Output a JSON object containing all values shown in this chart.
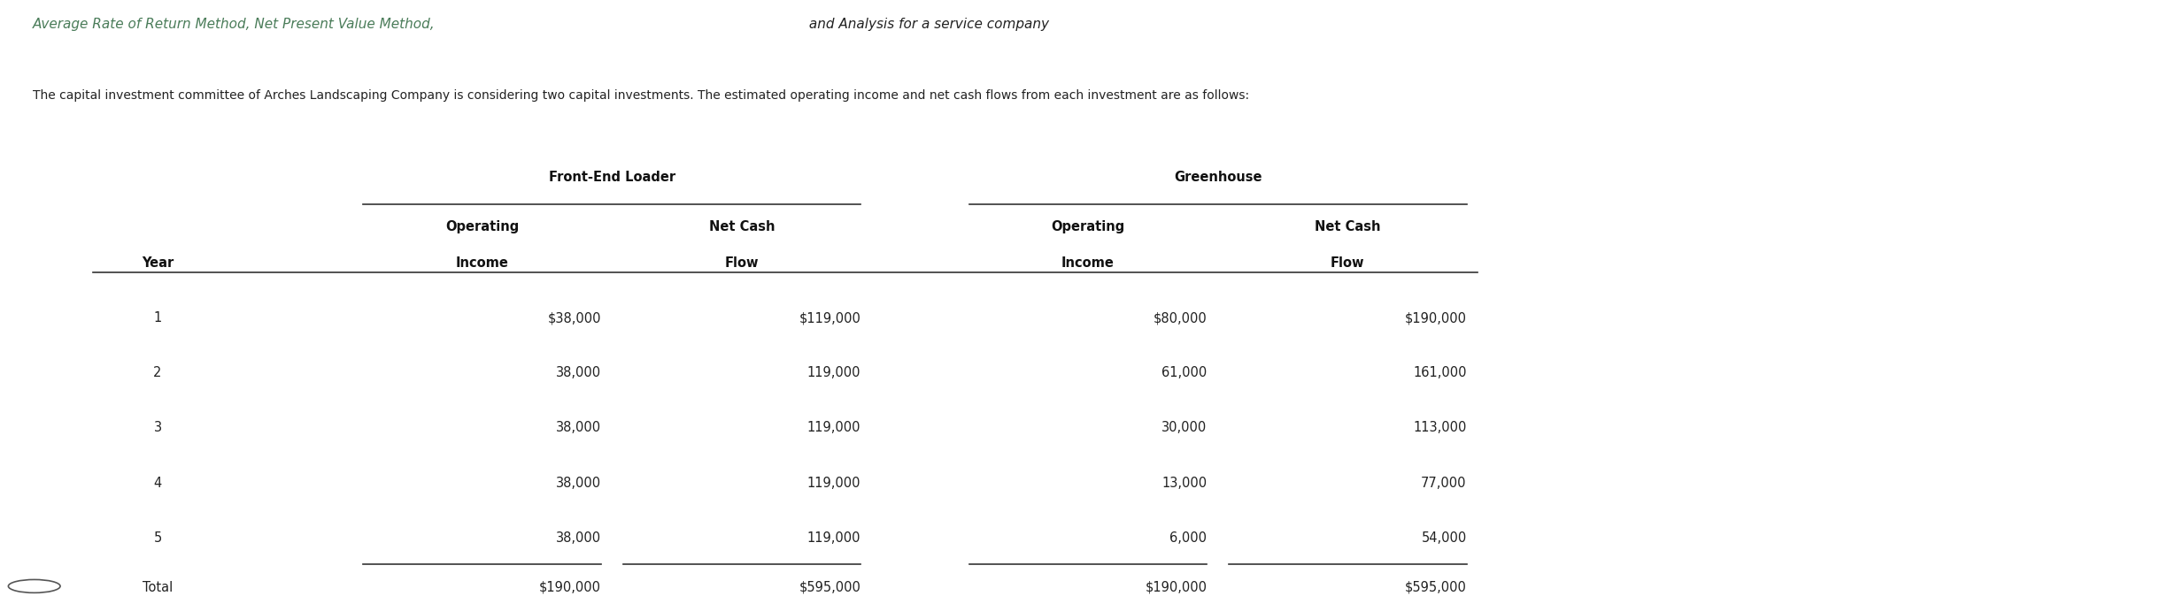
{
  "title_parts": [
    {
      "text": "Average Rate of Return Method, Net Present Value Method,",
      "color": "#4a7c59"
    },
    {
      "text": " and Analysis for a service company",
      "color": "#333333"
    }
  ],
  "subtitle": "The capital investment committee of Arches Landscaping Company is considering two capital investments. The estimated operating income and net cash flows from each investment are as follows:",
  "col_group1": "Front-End Loader",
  "col_group2": "Greenhouse",
  "col_headers": [
    "Operating\nIncome",
    "Net Cash\nFlow",
    "Operating\nIncome",
    "Net Cash\nFlow"
  ],
  "row_label": "Year",
  "rows": [
    [
      "1",
      "$38,000",
      "$119,000",
      "$80,000",
      "$190,000"
    ],
    [
      "2",
      "38,000",
      "119,000",
      "61,000",
      "161,000"
    ],
    [
      "3",
      "38,000",
      "119,000",
      "30,000",
      "113,000"
    ],
    [
      "4",
      "38,000",
      "119,000",
      "13,000",
      "77,000"
    ],
    [
      "5",
      "38,000",
      "119,000",
      "6,000",
      "54,000"
    ]
  ],
  "total_row": [
    "Total",
    "$190,000",
    "$595,000",
    "$190,000",
    "$595,000"
  ],
  "bg_color": "#ffffff",
  "text_color": "#222222",
  "header_color": "#111111",
  "green_color": "#4a7c59",
  "font_size_title": 11,
  "font_size_subtitle": 10,
  "font_size_table": 10.5
}
